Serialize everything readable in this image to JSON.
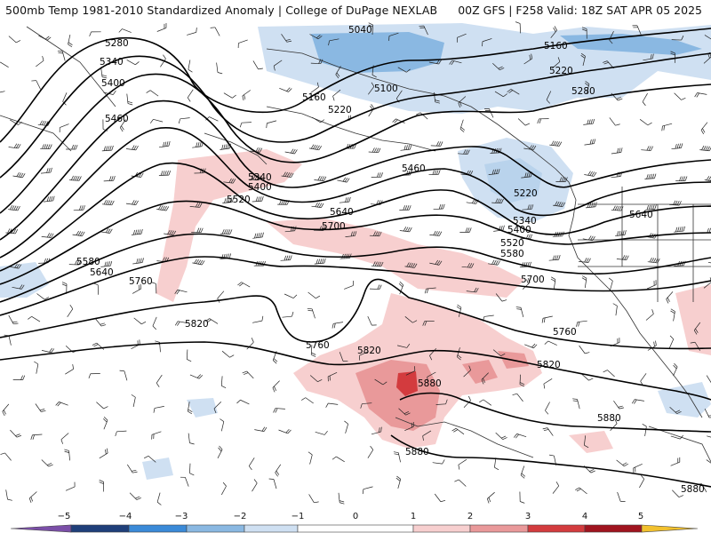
{
  "header": {
    "title_left": "500mb Temp 1981-2010 Standardized Anomaly | College of DuPage NEXLAB",
    "title_right": "00Z GFS | F258 Valid: 18Z SAT APR 05 2025"
  },
  "colors": {
    "anom_neg5": "#7b4fa8",
    "anom_neg4": "#1f3f7a",
    "anom_neg3": "#3a8ad8",
    "anom_neg2": "#8ab8e2",
    "anom_neg1": "#cfe0f2",
    "anom_0": "#ffffff",
    "anom_pos1": "#f7cfcf",
    "anom_pos2": "#e9999a",
    "anom_pos3": "#d33b3e",
    "anom_pos4": "#a0141f",
    "anom_pos5": "#f2c12e",
    "contour": "#000000",
    "coast": "#333333"
  },
  "legend": {
    "ticks": [
      "−5",
      "−4",
      "−3",
      "−2",
      "−1",
      "0",
      "1",
      "2",
      "3",
      "4",
      "5"
    ]
  },
  "contours": {
    "labels": [
      "5040",
      "5160",
      "5280",
      "5340",
      "5400",
      "5460",
      "5100",
      "5220",
      "5280",
      "5160",
      "5220",
      "5340",
      "5400",
      "5460",
      "5520",
      "5640",
      "5700",
      "5220",
      "5340",
      "5400",
      "5520",
      "5580",
      "5640",
      "5700",
      "5580",
      "5640",
      "5760",
      "5820",
      "5760",
      "5820",
      "5880",
      "5760",
      "5820",
      "5880",
      "5880",
      "5880"
    ]
  }
}
